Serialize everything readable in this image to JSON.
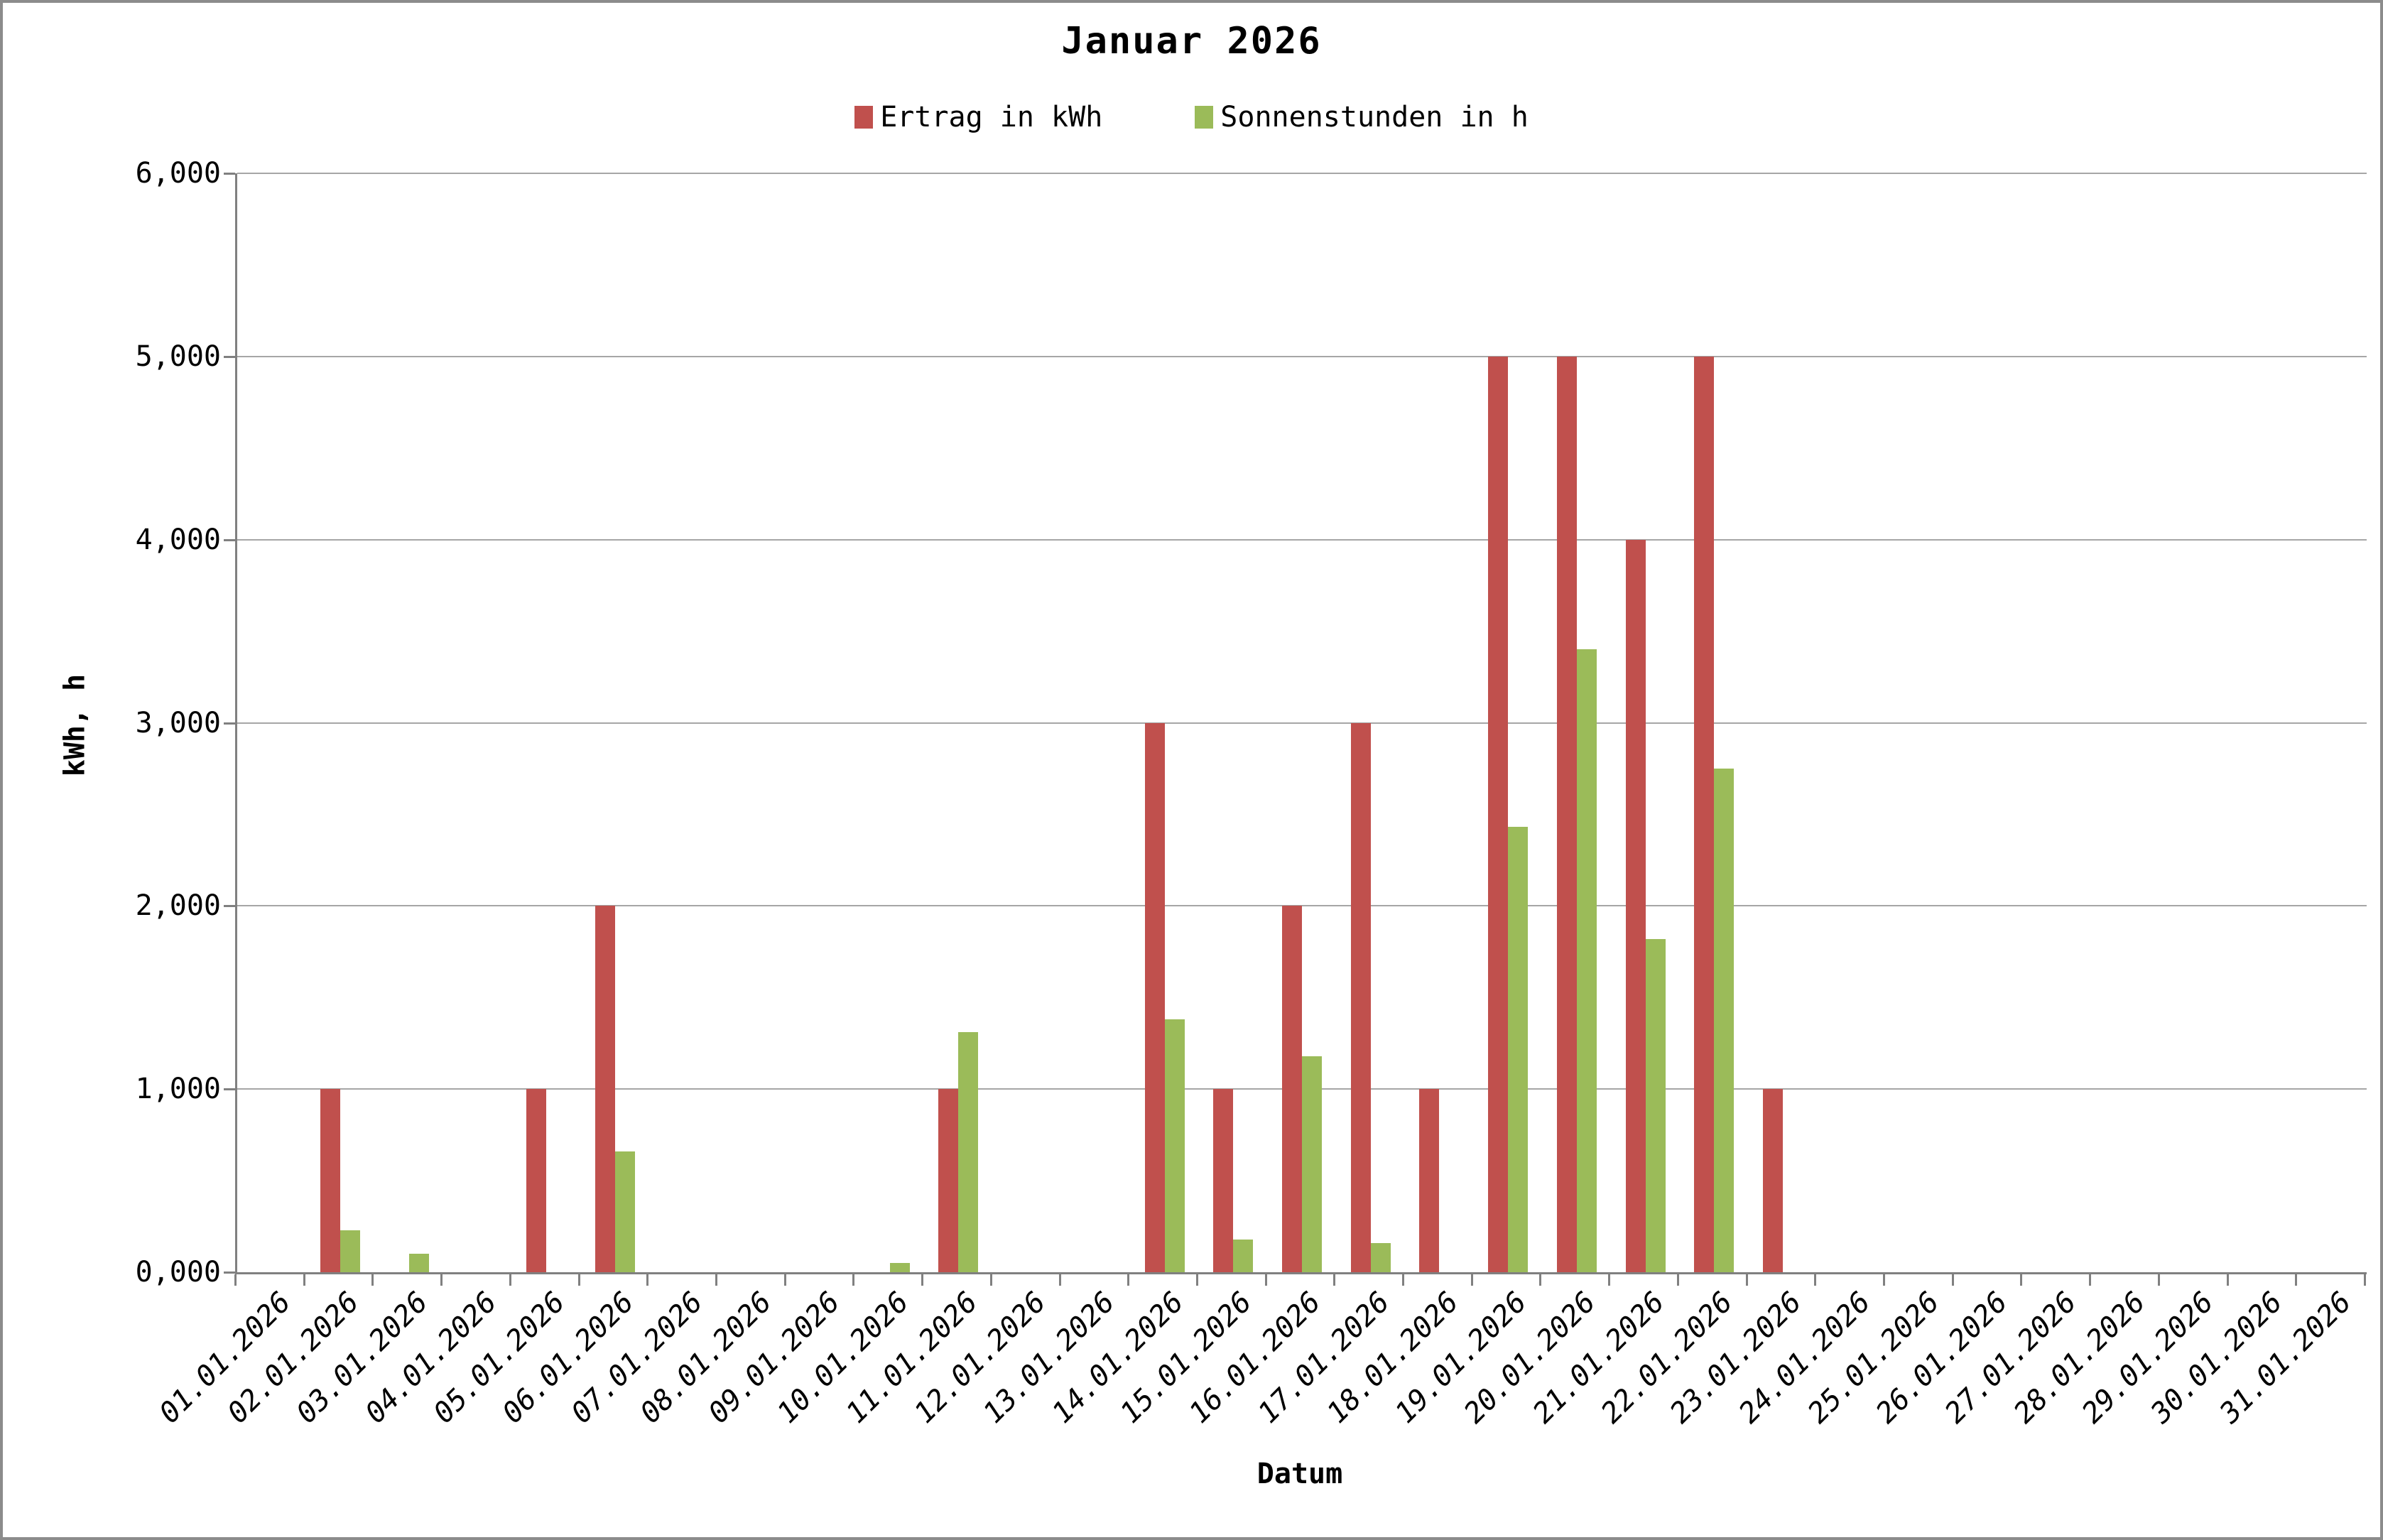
{
  "title": "Januar 2026",
  "legend": [
    {
      "label": "Ertrag in kWh",
      "color": "#C0504D"
    },
    {
      "label": "Sonnenstunden in h",
      "color": "#9BBB59"
    }
  ],
  "y_axis": {
    "title": "kWh, h",
    "tick_labels": [
      "0,000",
      "1,000",
      "2,000",
      "3,000",
      "4,000",
      "5,000",
      "6,000"
    ]
  },
  "x_axis": {
    "title": "Datum"
  },
  "colors": {
    "axis": "#808080",
    "gridline": "#a6a6a6",
    "series_red": "#C0504D",
    "series_green": "#9BBB59"
  },
  "chart_data": {
    "type": "bar",
    "title": "Januar 2026",
    "xlabel": "Datum",
    "ylabel": "kWh, h",
    "ylim": [
      0,
      6
    ],
    "y_tick_step": 1,
    "grid": "horizontal",
    "legend_position": "top-center",
    "categories": [
      "01.01.2026",
      "02.01.2026",
      "03.01.2026",
      "04.01.2026",
      "05.01.2026",
      "06.01.2026",
      "07.01.2026",
      "08.01.2026",
      "09.01.2026",
      "10.01.2026",
      "11.01.2026",
      "12.01.2026",
      "13.01.2026",
      "14.01.2026",
      "15.01.2026",
      "16.01.2026",
      "17.01.2026",
      "18.01.2026",
      "19.01.2026",
      "20.01.2026",
      "21.01.2026",
      "22.01.2026",
      "23.01.2026",
      "24.01.2026",
      "25.01.2026",
      "26.01.2026",
      "27.01.2026",
      "28.01.2026",
      "29.01.2026",
      "30.01.2026",
      "31.01.2026"
    ],
    "series": [
      {
        "name": "Ertrag in kWh",
        "color": "#C0504D",
        "values": [
          0,
          1,
          0,
          0,
          1,
          2,
          0,
          0,
          0,
          0,
          1,
          0,
          0,
          3,
          1,
          2,
          3,
          1,
          5,
          5,
          4,
          5,
          1,
          0,
          0,
          0,
          0,
          0,
          0,
          0,
          0
        ]
      },
      {
        "name": "Sonnenstunden in h",
        "color": "#9BBB59",
        "values": [
          0,
          0.23,
          0.1,
          0,
          0,
          0.66,
          0,
          0,
          0,
          0.05,
          1.31,
          0,
          0,
          1.38,
          0.18,
          1.18,
          0.16,
          0,
          2.43,
          3.4,
          1.82,
          2.75,
          0,
          0,
          0,
          0,
          0,
          0,
          0,
          0,
          0
        ]
      }
    ]
  }
}
